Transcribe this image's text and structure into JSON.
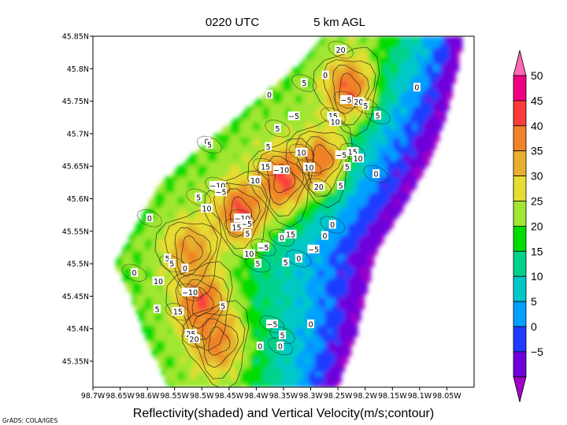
{
  "header": {
    "time_label": "0220 UTC",
    "level_label": "5 km AGL"
  },
  "caption": "Reflectivity(shaded) and Vertical Velocity(m/s;contour)",
  "credit": "GrADS: COLA/IGES",
  "chart_data": {
    "type": "heatmap",
    "title": "0220 UTC",
    "subtitle": "5 km AGL",
    "xlabel": "Reflectivity(shaded) and Vertical Velocity(m/s;contour)",
    "x_ticks": [
      "98.7W",
      "98.65W",
      "98.6W",
      "98.55W",
      "98.5W",
      "98.45W",
      "98.4W",
      "98.35W",
      "98.3W",
      "98.25W",
      "98.2W",
      "98.15W",
      "98.1W",
      "98.05W"
    ],
    "x_tick_values": [
      -98.7,
      -98.65,
      -98.6,
      -98.55,
      -98.5,
      -98.45,
      -98.4,
      -98.35,
      -98.3,
      -98.25,
      -98.2,
      -98.15,
      -98.1,
      -98.05
    ],
    "y_ticks": [
      "45.35N",
      "45.4N",
      "45.45N",
      "45.5N",
      "45.55N",
      "45.6N",
      "45.65N",
      "45.7N",
      "45.75N",
      "45.8N",
      "45.85N"
    ],
    "y_tick_values": [
      45.35,
      45.4,
      45.45,
      45.5,
      45.55,
      45.6,
      45.65,
      45.7,
      45.75,
      45.8,
      45.85
    ],
    "xlim": [
      -98.7,
      -98.0
    ],
    "ylim": [
      45.31,
      45.85
    ],
    "colorbar": {
      "labels": [
        "50",
        "45",
        "40",
        "35",
        "30",
        "25",
        "20",
        "15",
        "10",
        "5",
        "0",
        "−5"
      ],
      "bin_bounds": [
        -10,
        -5,
        0,
        5,
        10,
        15,
        20,
        25,
        30,
        35,
        40,
        45,
        50,
        55
      ],
      "colors": [
        "#a000c8",
        "#6e00dc",
        "#1e3cff",
        "#00a0ff",
        "#00c8c8",
        "#00d28c",
        "#00dc00",
        "#a0e632",
        "#e6dc32",
        "#e6af2d",
        "#f08228",
        "#fa3c3c",
        "#f00082",
        "#ff69b4"
      ]
    },
    "reflectivity_band": {
      "northwest_edge": [
        [
          -98.56,
          45.31
        ],
        [
          -98.6,
          45.38
        ],
        [
          -98.63,
          45.45
        ],
        [
          -98.66,
          45.5
        ],
        [
          -98.58,
          45.62
        ],
        [
          -98.5,
          45.68
        ],
        [
          -98.4,
          45.75
        ],
        [
          -98.33,
          45.8
        ],
        [
          -98.28,
          45.85
        ]
      ],
      "southeast_edge": [
        [
          -98.25,
          45.31
        ],
        [
          -98.22,
          45.38
        ],
        [
          -98.2,
          45.45
        ],
        [
          -98.18,
          45.52
        ],
        [
          -98.12,
          45.6
        ],
        [
          -98.08,
          45.66
        ],
        [
          -98.05,
          45.73
        ],
        [
          -98.03,
          45.8
        ],
        [
          -98.02,
          45.85
        ]
      ]
    },
    "reflectivity_cores": [
      {
        "lon": -98.5,
        "lat": 45.44,
        "dbz": 47
      },
      {
        "lon": -98.43,
        "lat": 45.58,
        "dbz": 47
      },
      {
        "lon": -98.35,
        "lat": 45.63,
        "dbz": 48
      },
      {
        "lon": -98.23,
        "lat": 45.77,
        "dbz": 45
      },
      {
        "lon": -98.28,
        "lat": 45.66,
        "dbz": 44
      },
      {
        "lon": -98.52,
        "lat": 45.52,
        "dbz": 41
      },
      {
        "lon": -98.47,
        "lat": 45.38,
        "dbz": 43
      }
    ],
    "contour_labels": [
      {
        "text": "20",
        "lon": -98.245,
        "lat": 45.829
      },
      {
        "text": "0",
        "lon": -98.273,
        "lat": 45.79
      },
      {
        "text": "5",
        "lon": -98.312,
        "lat": 45.778
      },
      {
        "text": "0",
        "lon": -98.376,
        "lat": 45.76
      },
      {
        "text": "−5",
        "lon": -98.235,
        "lat": 45.752
      },
      {
        "text": "20",
        "lon": -98.212,
        "lat": 45.749
      },
      {
        "text": "5",
        "lon": -98.199,
        "lat": 45.743
      },
      {
        "text": "0",
        "lon": -98.105,
        "lat": 45.771
      },
      {
        "text": "5",
        "lon": -98.177,
        "lat": 45.728
      },
      {
        "text": "−5",
        "lon": -98.331,
        "lat": 45.727
      },
      {
        "text": "15",
        "lon": -98.259,
        "lat": 45.727
      },
      {
        "text": "10",
        "lon": -98.255,
        "lat": 45.718
      },
      {
        "text": "5",
        "lon": -98.361,
        "lat": 45.708
      },
      {
        "text": "0",
        "lon": -98.491,
        "lat": 45.688
      },
      {
        "text": "5",
        "lon": -98.486,
        "lat": 45.683
      },
      {
        "text": "5",
        "lon": -98.378,
        "lat": 45.68
      },
      {
        "text": "10",
        "lon": -98.317,
        "lat": 45.671
      },
      {
        "text": "−5",
        "lon": -98.244,
        "lat": 45.667
      },
      {
        "text": "15",
        "lon": -98.223,
        "lat": 45.672
      },
      {
        "text": "10",
        "lon": -98.213,
        "lat": 45.662
      },
      {
        "text": "15",
        "lon": -98.383,
        "lat": 45.649
      },
      {
        "text": "−10",
        "lon": -98.354,
        "lat": 45.644
      },
      {
        "text": "10",
        "lon": -98.303,
        "lat": 45.648
      },
      {
        "text": "5",
        "lon": -98.233,
        "lat": 45.649
      },
      {
        "text": "0",
        "lon": -98.18,
        "lat": 45.638
      },
      {
        "text": "10",
        "lon": -98.402,
        "lat": 45.628
      },
      {
        "text": "−10",
        "lon": -98.471,
        "lat": 45.62
      },
      {
        "text": "−5",
        "lon": -98.465,
        "lat": 45.61
      },
      {
        "text": "20",
        "lon": -98.285,
        "lat": 45.618
      },
      {
        "text": "5",
        "lon": -98.245,
        "lat": 45.62
      },
      {
        "text": "5",
        "lon": -98.506,
        "lat": 45.602
      },
      {
        "text": "10",
        "lon": -98.491,
        "lat": 45.585
      },
      {
        "text": "−10",
        "lon": -98.426,
        "lat": 45.57
      },
      {
        "text": "−5",
        "lon": -98.418,
        "lat": 45.561
      },
      {
        "text": "15",
        "lon": -98.436,
        "lat": 45.556
      },
      {
        "text": "5",
        "lon": -98.416,
        "lat": 45.546
      },
      {
        "text": "0",
        "lon": -98.26,
        "lat": 45.56
      },
      {
        "text": "0",
        "lon": -98.274,
        "lat": 45.543
      },
      {
        "text": "−5",
        "lon": -98.387,
        "lat": 45.525
      },
      {
        "text": "15",
        "lon": -98.337,
        "lat": 45.545
      },
      {
        "text": "0",
        "lon": -98.353,
        "lat": 45.54
      },
      {
        "text": "−5",
        "lon": -98.295,
        "lat": 45.522
      },
      {
        "text": "0",
        "lon": -98.596,
        "lat": 45.57
      },
      {
        "text": "10",
        "lon": -98.413,
        "lat": 45.515
      },
      {
        "text": "5",
        "lon": -98.397,
        "lat": 45.5
      },
      {
        "text": "5",
        "lon": -98.346,
        "lat": 45.502
      },
      {
        "text": "0",
        "lon": -98.322,
        "lat": 45.508
      },
      {
        "text": "5",
        "lon": -98.563,
        "lat": 45.508
      },
      {
        "text": "5",
        "lon": -98.555,
        "lat": 45.5
      },
      {
        "text": "0",
        "lon": -98.531,
        "lat": 45.493
      },
      {
        "text": "0",
        "lon": -98.624,
        "lat": 45.486
      },
      {
        "text": "10",
        "lon": -98.58,
        "lat": 45.473
      },
      {
        "text": "−10",
        "lon": -98.522,
        "lat": 45.456
      },
      {
        "text": "5",
        "lon": -98.582,
        "lat": 45.43
      },
      {
        "text": "15",
        "lon": -98.544,
        "lat": 45.426
      },
      {
        "text": "5",
        "lon": -98.461,
        "lat": 45.435
      },
      {
        "text": "−5",
        "lon": -98.371,
        "lat": 45.407
      },
      {
        "text": "0",
        "lon": -98.3,
        "lat": 45.407
      },
      {
        "text": "5",
        "lon": -98.352,
        "lat": 45.39
      },
      {
        "text": "25",
        "lon": -98.52,
        "lat": 45.392
      },
      {
        "text": "20",
        "lon": -98.514,
        "lat": 45.384
      },
      {
        "text": "0",
        "lon": -98.393,
        "lat": 45.373
      },
      {
        "text": "0",
        "lon": -98.356,
        "lat": 45.373
      }
    ],
    "grid": false
  }
}
